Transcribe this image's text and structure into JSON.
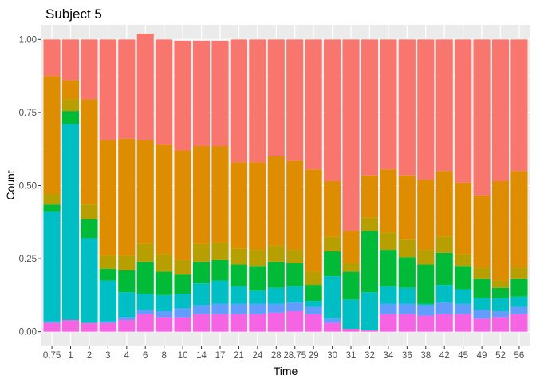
{
  "chart_data": {
    "type": "bar",
    "stacked": true,
    "position": "fill",
    "title": "Subject 5",
    "xlabel": "Time",
    "ylabel": "Count",
    "ylim": [
      0,
      1
    ],
    "y_ticks": [
      0,
      0.25,
      0.5,
      0.75,
      1
    ],
    "y_tick_labels": [
      "0.00",
      "0.25",
      "0.50",
      "0.75",
      "1.00"
    ],
    "grid": true,
    "legend": "none",
    "background": "#ebebeb",
    "categories": [
      "0.75",
      "1",
      "2",
      "3",
      "4",
      "6",
      "8",
      "10",
      "14",
      "17",
      "21",
      "24",
      "28",
      "28.75",
      "29",
      "30",
      "31",
      "32",
      "34",
      "36",
      "38",
      "42",
      "45",
      "49",
      "52",
      "56"
    ],
    "series": [
      {
        "color": "#f564e3",
        "values": [
          0.03,
          0.04,
          0.03,
          0.03,
          0.04,
          0.06,
          0.05,
          0.05,
          0.06,
          0.06,
          0.06,
          0.06,
          0.065,
          0.07,
          0.06,
          0.03,
          0.01,
          0.005,
          0.06,
          0.06,
          0.055,
          0.06,
          0.06,
          0.045,
          0.05,
          0.06
        ]
      },
      {
        "color": "#619cff",
        "values": [
          0.005,
          0.0,
          0.0,
          0.005,
          0.01,
          0.015,
          0.02,
          0.03,
          0.03,
          0.035,
          0.035,
          0.035,
          0.03,
          0.03,
          0.025,
          0.015,
          0.0,
          0.0,
          0.035,
          0.035,
          0.035,
          0.04,
          0.035,
          0.03,
          0.02,
          0.025
        ]
      },
      {
        "color": "#00bfc4",
        "values": [
          0.375,
          0.67,
          0.29,
          0.14,
          0.085,
          0.055,
          0.055,
          0.05,
          0.075,
          0.08,
          0.06,
          0.045,
          0.055,
          0.055,
          0.02,
          0.145,
          0.1,
          0.13,
          0.06,
          0.055,
          0.005,
          0.06,
          0.05,
          0.04,
          0.045,
          0.035
        ]
      },
      {
        "color": "#00ba38",
        "values": [
          0.025,
          0.045,
          0.065,
          0.04,
          0.075,
          0.11,
          0.08,
          0.065,
          0.075,
          0.07,
          0.075,
          0.085,
          0.09,
          0.08,
          0.055,
          0.085,
          0.095,
          0.21,
          0.125,
          0.105,
          0.135,
          0.11,
          0.08,
          0.065,
          0.035,
          0.06
        ]
      },
      {
        "color": "#b79f00",
        "values": [
          0.035,
          0.04,
          0.05,
          0.045,
          0.05,
          0.06,
          0.06,
          0.05,
          0.06,
          0.06,
          0.055,
          0.055,
          0.055,
          0.045,
          0.045,
          0.05,
          0.03,
          0.045,
          0.06,
          0.06,
          0.05,
          0.055,
          0.04,
          0.04,
          0.025,
          0.04
        ]
      },
      {
        "color": "#de8c00",
        "values": [
          0.405,
          0.065,
          0.36,
          0.395,
          0.4,
          0.355,
          0.375,
          0.375,
          0.335,
          0.33,
          0.295,
          0.3,
          0.305,
          0.305,
          0.35,
          0.19,
          0.11,
          0.145,
          0.215,
          0.22,
          0.24,
          0.225,
          0.245,
          0.245,
          0.34,
          0.33
        ]
      },
      {
        "color": "#f8766d",
        "values": [
          0.125,
          0.14,
          0.205,
          0.345,
          0.34,
          0.365,
          0.36,
          0.375,
          0.36,
          0.36,
          0.42,
          0.42,
          0.4,
          0.415,
          0.445,
          0.485,
          0.655,
          0.465,
          0.445,
          0.465,
          0.48,
          0.45,
          0.49,
          0.535,
          0.485,
          0.45
        ]
      }
    ]
  }
}
